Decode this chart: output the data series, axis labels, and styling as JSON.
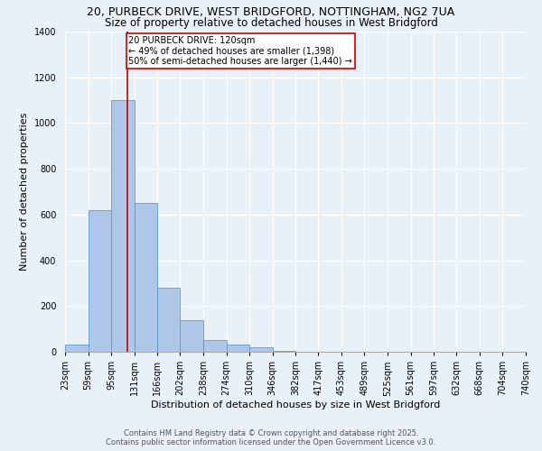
{
  "title_line1": "20, PURBECK DRIVE, WEST BRIDGFORD, NOTTINGHAM, NG2 7UA",
  "title_line2": "Size of property relative to detached houses in West Bridgford",
  "xlabel": "Distribution of detached houses by size in West Bridgford",
  "ylabel": "Number of detached properties",
  "footer_line1": "Contains HM Land Registry data © Crown copyright and database right 2025.",
  "footer_line2": "Contains public sector information licensed under the Open Government Licence v3.0.",
  "bin_edges": [
    23,
    59,
    95,
    131,
    166,
    202,
    238,
    274,
    310,
    346,
    382,
    417,
    453,
    489,
    525,
    561,
    597,
    632,
    668,
    704,
    740
  ],
  "bar_heights": [
    30,
    620,
    1100,
    650,
    280,
    140,
    50,
    30,
    20,
    5,
    0,
    0,
    0,
    0,
    0,
    0,
    0,
    0,
    0,
    0
  ],
  "bar_color": "#aec6e8",
  "bar_edge_color": "#5b9bd5",
  "background_color": "#e8f0f8",
  "grid_color": "#ffffff",
  "red_line_x": 120,
  "annotation_text_line1": "20 PURBECK DRIVE: 120sqm",
  "annotation_text_line2": "← 49% of detached houses are smaller (1,398)",
  "annotation_text_line3": "50% of semi-detached houses are larger (1,440) →",
  "annotation_box_color": "#ffffff",
  "annotation_border_color": "#cc0000",
  "ylim": [
    0,
    1400
  ],
  "yticks": [
    0,
    200,
    400,
    600,
    800,
    1000,
    1200,
    1400
  ],
  "title_fontsize": 9,
  "subtitle_fontsize": 8.5,
  "axis_label_fontsize": 8,
  "tick_fontsize": 7,
  "annotation_fontsize": 7,
  "footer_fontsize": 6
}
